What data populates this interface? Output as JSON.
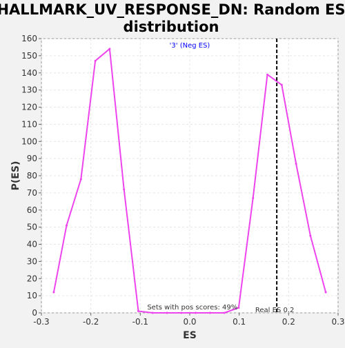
{
  "chart_data": {
    "type": "line",
    "title_line1": "HALLMARK_UV_RESPONSE_DN: Random ES",
    "title_line2": "distribution",
    "xlabel": "ES",
    "ylabel": "P(ES)",
    "xlim": [
      -0.3,
      0.3
    ],
    "ylim": [
      0,
      160
    ],
    "xticks": [
      -0.3,
      -0.2,
      -0.1,
      0.0,
      0.1,
      0.2,
      0.3
    ],
    "xtick_labels": [
      "-0.3",
      "-0.2",
      "-0.1",
      "0.0",
      "0.1",
      "0.2",
      "0.3"
    ],
    "yticks": [
      0,
      10,
      20,
      30,
      40,
      50,
      60,
      70,
      80,
      90,
      100,
      110,
      120,
      130,
      140,
      150,
      160
    ],
    "ytick_labels": [
      "0",
      "10",
      "20",
      "30",
      "40",
      "50",
      "60",
      "70",
      "80",
      "90",
      "100",
      "110",
      "120",
      "130",
      "140",
      "150",
      "160"
    ],
    "grid": true,
    "legend": "top-center",
    "series": [
      {
        "name": "'3' (Neg ES)",
        "color": "#ee44ee",
        "x": [
          -0.275,
          -0.249,
          -0.22,
          -0.191,
          -0.162,
          -0.133,
          -0.104,
          -0.075,
          -0.046,
          -0.017,
          0.012,
          0.041,
          0.07,
          0.099,
          0.128,
          0.157,
          0.186,
          0.215,
          0.244,
          0.275
        ],
        "y": [
          12,
          51,
          78,
          147,
          154,
          72,
          1,
          0,
          0,
          0,
          0,
          0,
          0,
          3,
          67,
          139,
          133,
          87,
          45,
          12
        ]
      }
    ],
    "reference_line": {
      "x": 0.176,
      "label": "Real ES 0.2",
      "color": "#000000"
    },
    "annotations": [
      {
        "text": "Sets with pos scores: 49%",
        "x": -0.1,
        "y": 2
      }
    ]
  }
}
